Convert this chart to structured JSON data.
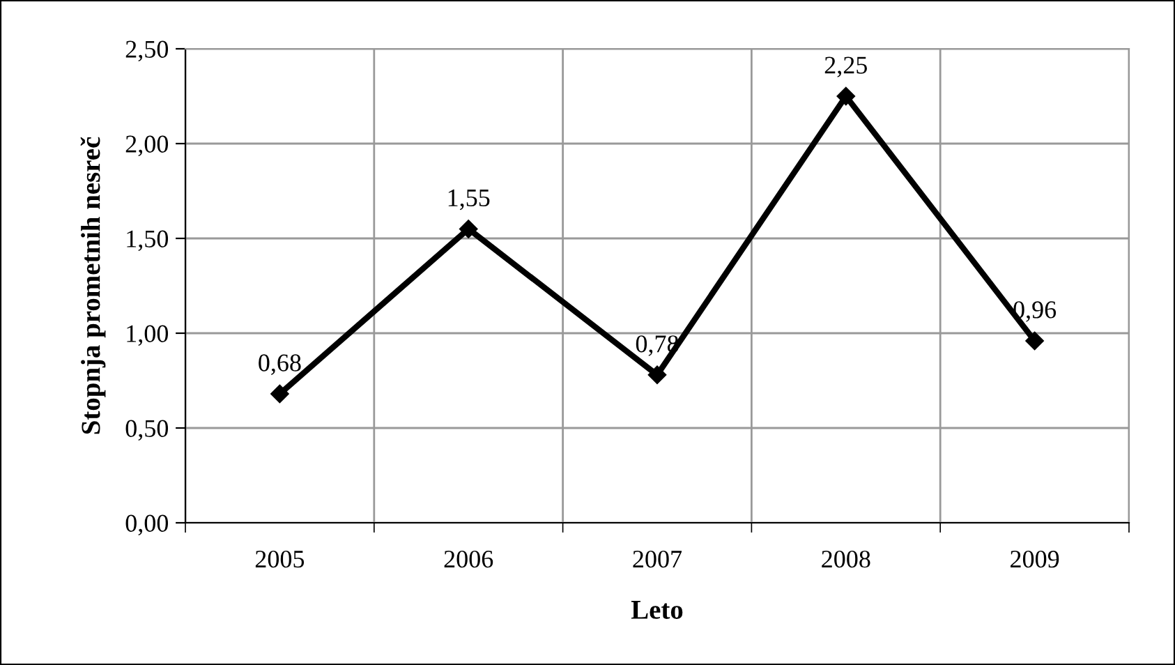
{
  "chart_data": {
    "type": "line",
    "xlabel": "Leto",
    "ylabel": "Stopnja prometnih nesreč",
    "categories": [
      "2005",
      "2006",
      "2007",
      "2008",
      "2009"
    ],
    "series": [
      {
        "color": "#000000",
        "values": [
          0.68,
          1.55,
          0.78,
          2.25,
          0.96
        ],
        "value_labels": [
          "0,68",
          "1,55",
          "0,78",
          "2,25",
          "0,96"
        ]
      }
    ],
    "ylim": [
      0,
      2.5
    ],
    "yticks": [
      {
        "value": 0,
        "label": "0,00"
      },
      {
        "value": 0.5,
        "label": "0,50"
      },
      {
        "value": 1.0,
        "label": "1,00"
      },
      {
        "value": 1.5,
        "label": "1,50"
      },
      {
        "value": 2.0,
        "label": "2,00"
      },
      {
        "value": 2.5,
        "label": "2,50"
      }
    ],
    "grid": true,
    "marker": "diamond",
    "line_style": "solid",
    "legend": false
  }
}
